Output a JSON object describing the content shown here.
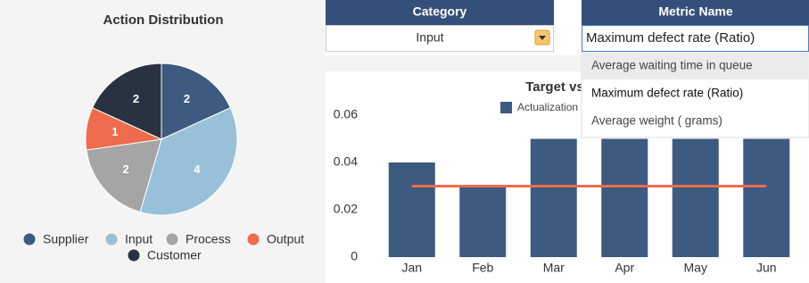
{
  "chart_data": [
    {
      "type": "pie",
      "title": "Action Distribution",
      "categories": [
        "Supplier",
        "Input",
        "Process",
        "Output",
        "Customer"
      ],
      "values": [
        2,
        4,
        2,
        1,
        2
      ],
      "colors": [
        "#3d5a80",
        "#98c1d9",
        "#a5a5a5",
        "#ee6c4d",
        "#293241"
      ],
      "legend": "bottom"
    },
    {
      "type": "bar",
      "title": "Target vs",
      "categories": [
        "Jan",
        "Feb",
        "Mar",
        "Apr",
        "May",
        "Jun"
      ],
      "series": [
        {
          "name": "Actualization",
          "type": "bar",
          "color": "#3d5a80",
          "values": [
            0.04,
            0.03,
            0.05,
            0.05,
            0.05,
            0.05
          ]
        },
        {
          "type": "line",
          "color": "#ee6c4d",
          "values": [
            0.03,
            0.03,
            0.03,
            0.03,
            0.03,
            0.03
          ]
        }
      ],
      "ylim": [
        0,
        0.06
      ],
      "yticks": [
        0,
        0.02,
        0.04,
        0.06
      ],
      "legend": "top"
    }
  ],
  "category_filter": {
    "header": "Category",
    "value": "Input"
  },
  "metric_dropdown": {
    "header": "Metric Name",
    "value": "Maximum defect rate (Ratio)",
    "options": [
      "Average waiting time in queue",
      "Maximum defect rate (Ratio)",
      "Average weight ( grams)"
    ],
    "highlighted": 0
  }
}
